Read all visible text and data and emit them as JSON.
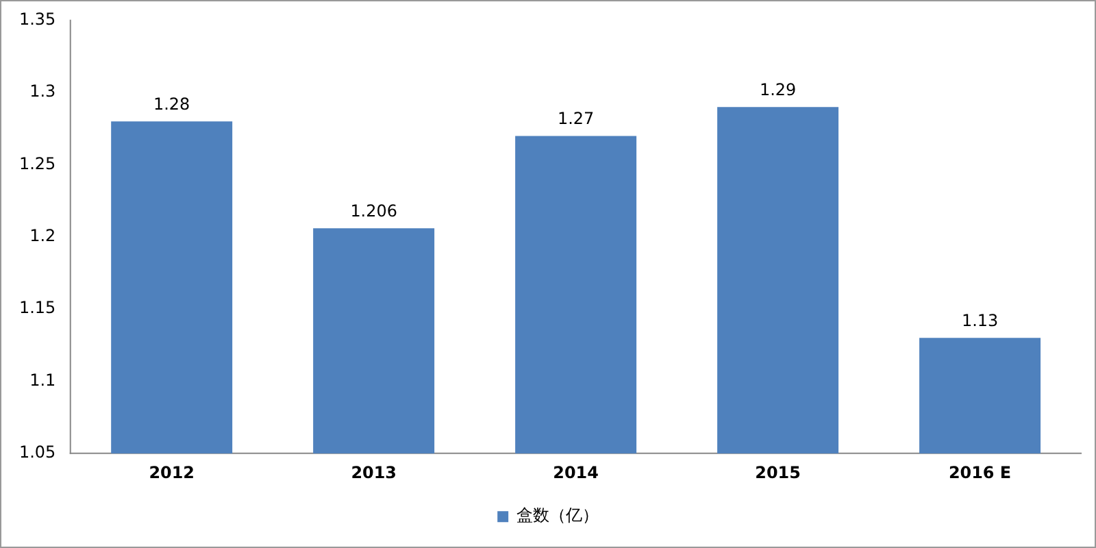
{
  "chart_data": {
    "type": "bar",
    "categories": [
      "2012",
      "2013",
      "2014",
      "2015",
      "2016 E"
    ],
    "series": [
      {
        "name": "盒数（亿）",
        "color": "#4f81bd",
        "values": [
          1.28,
          1.206,
          1.27,
          1.29,
          1.13
        ]
      }
    ],
    "ylim": [
      1.05,
      1.35
    ],
    "yticks": [
      1.05,
      1.1,
      1.15,
      1.2,
      1.25,
      1.3,
      1.35
    ],
    "grid": false,
    "legend": "bottom",
    "data_labels": true
  }
}
